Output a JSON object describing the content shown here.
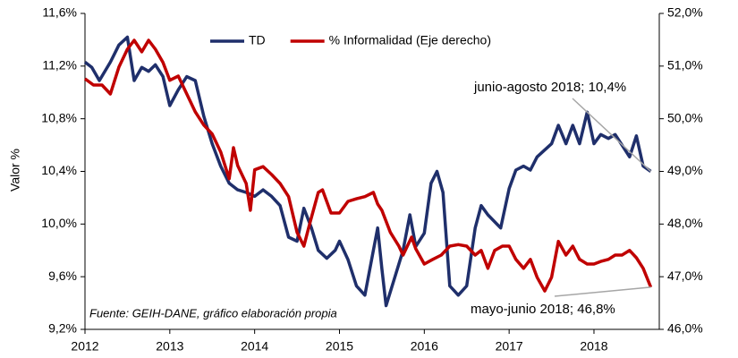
{
  "chart_data": {
    "type": "line",
    "y_label": "Valor %",
    "source": "Fuente: GEIH-DANE, gráfico elaboración propia",
    "annotations": [
      "junio-agosto 2018; 10,4%",
      "mayo-junio 2018; 46,8%"
    ],
    "xlim": [
      2012,
      2018.77
    ],
    "xticks": [
      2012,
      2013,
      2014,
      2015,
      2016,
      2017,
      2018
    ],
    "ylim": [
      9.2,
      11.6
    ],
    "yticks": [
      {
        "value": 9.2,
        "label": "9,2%"
      },
      {
        "value": 9.6,
        "label": "9,6%"
      },
      {
        "value": 10.0,
        "label": "10,0%"
      },
      {
        "value": 10.4,
        "label": "10,4%"
      },
      {
        "value": 10.8,
        "label": "10,8%"
      },
      {
        "value": 11.2,
        "label": "11,2%"
      },
      {
        "value": 11.6,
        "label": "11,6%"
      }
    ],
    "y2lim": [
      46,
      52
    ],
    "y2ticks": [
      {
        "value": 46,
        "label": "46,0%"
      },
      {
        "value": 47,
        "label": "47,0%"
      },
      {
        "value": 48,
        "label": "48,0%"
      },
      {
        "value": 49,
        "label": "49,0%"
      },
      {
        "value": 50,
        "label": "50,0%"
      },
      {
        "value": 51,
        "label": "51,0%"
      },
      {
        "value": 52,
        "label": "52,0%"
      }
    ],
    "legend": "top",
    "series": [
      {
        "name": "TD",
        "color": "#1f2f6b",
        "axis": "y",
        "x": [
          2012.0,
          2012.08,
          2012.17,
          2012.3,
          2012.4,
          2012.5,
          2012.58,
          2012.67,
          2012.75,
          2012.83,
          2012.92,
          2013.0,
          2013.1,
          2013.2,
          2013.3,
          2013.4,
          2013.5,
          2013.6,
          2013.7,
          2013.8,
          2013.9,
          2014.0,
          2014.1,
          2014.2,
          2014.3,
          2014.4,
          2014.5,
          2014.58,
          2014.67,
          2014.75,
          2014.85,
          2014.95,
          2015.0,
          2015.1,
          2015.2,
          2015.3,
          2015.4,
          2015.45,
          2015.5,
          2015.55,
          2015.65,
          2015.75,
          2015.83,
          2015.9,
          2016.0,
          2016.08,
          2016.15,
          2016.22,
          2016.3,
          2016.4,
          2016.5,
          2016.6,
          2016.67,
          2016.75,
          2016.9,
          2017.0,
          2017.08,
          2017.17,
          2017.25,
          2017.33,
          2017.5,
          2017.58,
          2017.67,
          2017.75,
          2017.83,
          2017.92,
          2018.0,
          2018.08,
          2018.17,
          2018.25,
          2018.33,
          2018.42,
          2018.5,
          2018.58,
          2018.67
        ],
        "values": [
          11.23,
          11.19,
          11.09,
          11.23,
          11.36,
          11.42,
          11.09,
          11.19,
          11.16,
          11.21,
          11.12,
          10.9,
          11.02,
          11.12,
          11.09,
          10.82,
          10.61,
          10.44,
          10.31,
          10.26,
          10.24,
          10.21,
          10.26,
          10.21,
          10.14,
          9.9,
          9.87,
          10.12,
          9.97,
          9.8,
          9.74,
          9.8,
          9.87,
          9.73,
          9.53,
          9.46,
          9.8,
          9.97,
          9.66,
          9.38,
          9.59,
          9.8,
          10.07,
          9.83,
          9.93,
          10.31,
          10.4,
          10.24,
          9.53,
          9.46,
          9.53,
          9.97,
          10.14,
          10.07,
          9.97,
          10.27,
          10.41,
          10.44,
          10.41,
          10.51,
          10.61,
          10.75,
          10.61,
          10.75,
          10.61,
          10.85,
          10.61,
          10.68,
          10.65,
          10.68,
          10.6,
          10.51,
          10.67,
          10.44,
          10.4
        ]
      },
      {
        "name": "% Informalidad (Eje derecho)",
        "color": "#c00000",
        "axis": "y2",
        "x": [
          2012.0,
          2012.1,
          2012.2,
          2012.3,
          2012.4,
          2012.5,
          2012.58,
          2012.67,
          2012.75,
          2012.83,
          2012.92,
          2013.0,
          2013.1,
          2013.2,
          2013.3,
          2013.4,
          2013.5,
          2013.6,
          2013.7,
          2013.75,
          2013.8,
          2013.9,
          2013.95,
          2014.0,
          2014.1,
          2014.2,
          2014.3,
          2014.4,
          2014.5,
          2014.58,
          2014.65,
          2014.75,
          2014.8,
          2014.9,
          2015.0,
          2015.1,
          2015.2,
          2015.3,
          2015.4,
          2015.45,
          2015.5,
          2015.6,
          2015.7,
          2015.75,
          2015.85,
          2015.9,
          2016.0,
          2016.1,
          2016.2,
          2016.3,
          2016.4,
          2016.5,
          2016.6,
          2016.67,
          2016.75,
          2016.83,
          2016.92,
          2017.0,
          2017.08,
          2017.17,
          2017.25,
          2017.33,
          2017.42,
          2017.5,
          2017.58,
          2017.67,
          2017.75,
          2017.83,
          2017.92,
          2018.0,
          2018.08,
          2018.17,
          2018.25,
          2018.33,
          2018.42,
          2018.5,
          2018.58,
          2018.67
        ],
        "values": [
          50.76,
          50.64,
          50.64,
          50.47,
          50.98,
          51.32,
          51.49,
          51.27,
          51.49,
          51.32,
          51.07,
          50.73,
          50.81,
          50.47,
          50.13,
          49.88,
          49.71,
          49.37,
          48.86,
          49.45,
          49.11,
          48.77,
          48.26,
          49.03,
          49.09,
          48.94,
          48.77,
          48.52,
          47.84,
          47.58,
          48.01,
          48.6,
          48.65,
          48.21,
          48.21,
          48.43,
          48.48,
          48.52,
          48.6,
          48.38,
          48.26,
          47.84,
          47.58,
          47.41,
          47.75,
          47.53,
          47.24,
          47.33,
          47.41,
          47.58,
          47.61,
          47.58,
          47.41,
          47.5,
          47.16,
          47.5,
          47.58,
          47.58,
          47.33,
          47.16,
          47.33,
          46.99,
          46.73,
          46.99,
          47.67,
          47.41,
          47.58,
          47.33,
          47.24,
          47.24,
          47.29,
          47.33,
          47.41,
          47.41,
          47.5,
          47.36,
          47.16,
          46.8
        ]
      }
    ]
  }
}
